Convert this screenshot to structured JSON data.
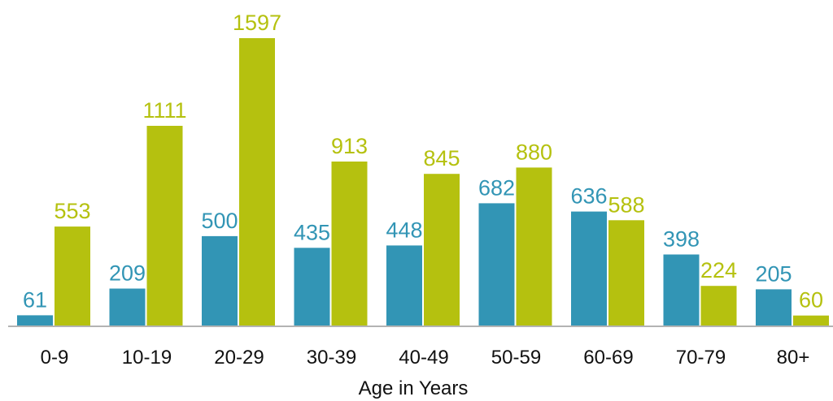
{
  "chart_data": {
    "type": "bar",
    "xlabel": "Age in Years",
    "ylabel": "",
    "categories": [
      "0-9",
      "10-19",
      "20-29",
      "30-39",
      "40-49",
      "50-59",
      "60-69",
      "70-79",
      "80+"
    ],
    "ylim": [
      0,
      1700
    ],
    "grid": false,
    "legend": "none",
    "series": [
      {
        "color": "#3295b5",
        "values": [
          61,
          209,
          500,
          435,
          448,
          682,
          636,
          398,
          205
        ]
      },
      {
        "color": "#b5c10f",
        "values": [
          553,
          1111,
          1597,
          913,
          845,
          880,
          588,
          224,
          60
        ]
      }
    ]
  }
}
